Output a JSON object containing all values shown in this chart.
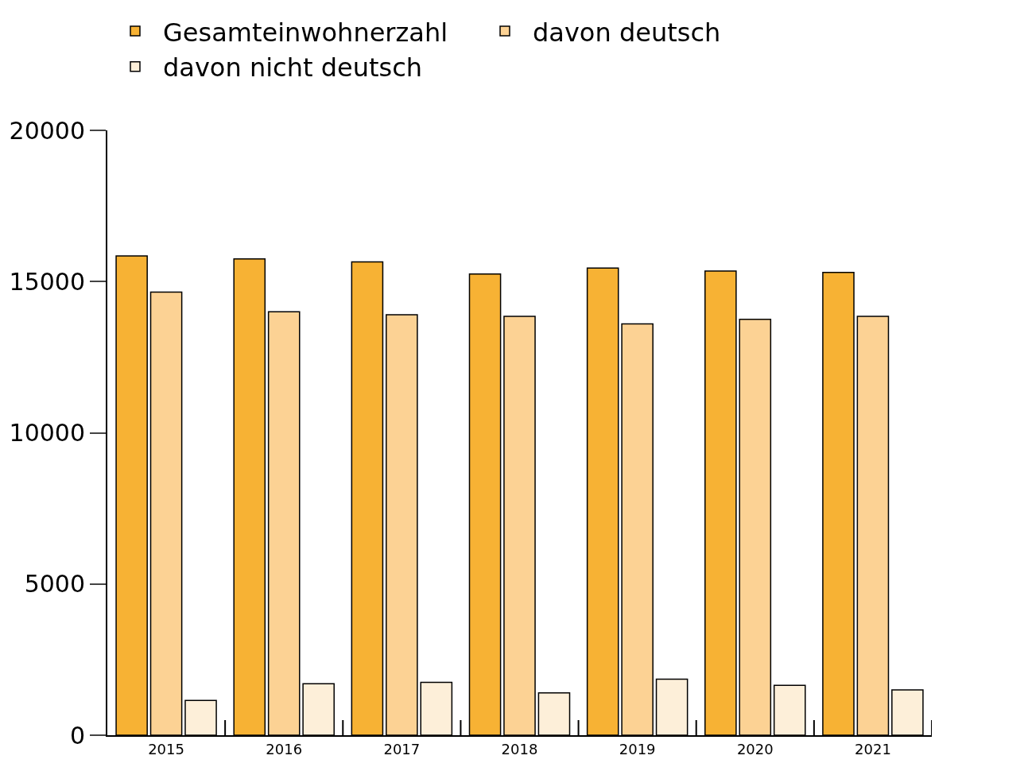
{
  "chart_data": {
    "type": "bar",
    "categories": [
      "2015",
      "2016",
      "2017",
      "2018",
      "2019",
      "2020",
      "2021"
    ],
    "series": [
      {
        "name": "Gesamteinwohnerzahl",
        "color": "#f7b234",
        "values": [
          15850,
          15750,
          15650,
          15250,
          15450,
          15350,
          15300
        ]
      },
      {
        "name": "davon deutsch",
        "color": "#fcd294",
        "values": [
          14650,
          14000,
          13900,
          13850,
          13600,
          13750,
          13850
        ]
      },
      {
        "name": "davon nicht deutsch",
        "color": "#fdefd9",
        "values": [
          1150,
          1700,
          1750,
          1400,
          1850,
          1650,
          1500
        ]
      }
    ],
    "ylim": [
      0,
      20000
    ],
    "yticks": [
      0,
      5000,
      10000,
      15000,
      20000
    ],
    "grid": false,
    "legend": "top"
  }
}
